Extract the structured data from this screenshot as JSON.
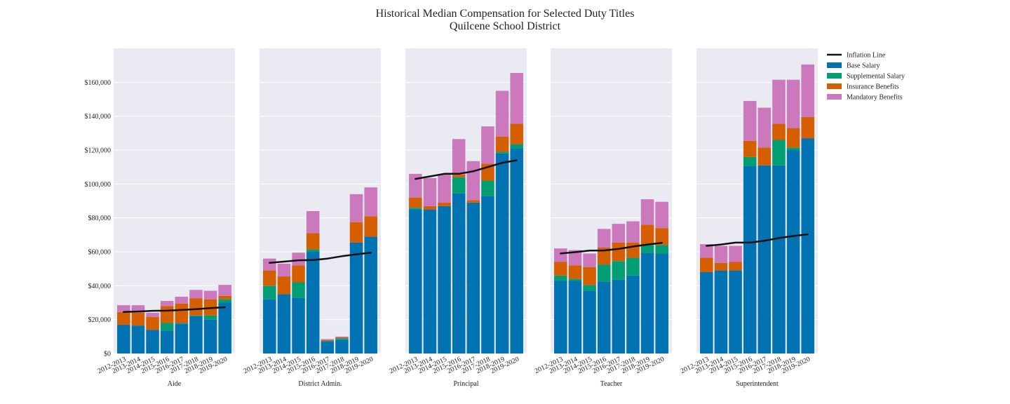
{
  "chart_data": {
    "type": "bar",
    "stacked": true,
    "title": "Historical Median Compensation for Selected Duty Titles",
    "subtitle": "Quilcene School District",
    "ylim": [
      0,
      180000
    ],
    "yticks": [
      0,
      20000,
      40000,
      60000,
      80000,
      100000,
      120000,
      140000,
      160000
    ],
    "ytick_labels": [
      "$0",
      "$20,000",
      "$40,000",
      "$60,000",
      "$80,000",
      "$100,000",
      "$120,000",
      "$140,000",
      "$160,000"
    ],
    "grid": true,
    "legend_position": "top-right, outside plot",
    "categories": [
      "2012-2013",
      "2013-2014",
      "2014-2015",
      "2015-2016",
      "2016-2017",
      "2017-2018",
      "2018-2019",
      "2019-2020"
    ],
    "legend": [
      {
        "name": "Inflation Line",
        "color": "#111111",
        "kind": "line"
      },
      {
        "name": "Base Salary",
        "color": "#0173b2",
        "kind": "bar"
      },
      {
        "name": "Supplemental Salary",
        "color": "#029e73",
        "kind": "bar"
      },
      {
        "name": "Insurance Benefits",
        "color": "#d55e00",
        "kind": "bar"
      },
      {
        "name": "Mandatory Benefits",
        "color": "#cc78bc",
        "kind": "bar"
      }
    ],
    "panels": [
      {
        "label": "Aide",
        "series": [
          {
            "name": "Base Salary",
            "values": [
              17000,
              16500,
              14000,
              13500,
              17500,
              22000,
              20000,
              30000
            ]
          },
          {
            "name": "Supplemental Salary",
            "values": [
              0,
              0,
              0,
              4500,
              500,
              500,
              2500,
              2000
            ]
          },
          {
            "name": "Insurance Benefits",
            "values": [
              7500,
              7500,
              7500,
              10000,
              11500,
              10000,
              9500,
              2000
            ]
          },
          {
            "name": "Mandatory Benefits",
            "values": [
              4000,
              4500,
              2500,
              3000,
              4000,
              5000,
              5000,
              6500
            ]
          }
        ],
        "inflation": [
          24500,
          24800,
          25200,
          25300,
          25700,
          26200,
          26800,
          27300
        ]
      },
      {
        "label": "District Admin.",
        "series": [
          {
            "name": "Base Salary",
            "values": [
              32000,
              35000,
              33000,
              60000,
              7000,
              8000,
              65500,
              69000
            ]
          },
          {
            "name": "Supplemental Salary",
            "values": [
              8000,
              0,
              9000,
              1500,
              500,
              1000,
              0,
              0
            ]
          },
          {
            "name": "Insurance Benefits",
            "values": [
              9000,
              10500,
              10000,
              9500,
              500,
              500,
              12000,
              12000
            ]
          },
          {
            "name": "Mandatory Benefits",
            "values": [
              7000,
              7500,
              7500,
              13000,
              500,
              500,
              16500,
              17000
            ]
          }
        ],
        "inflation": [
          53500,
          54200,
          55000,
          55100,
          56000,
          57400,
          58500,
          59500
        ]
      },
      {
        "label": "Principal",
        "series": [
          {
            "name": "Base Salary",
            "values": [
              85000,
              85000,
              87000,
              94500,
              89000,
              93000,
              118000,
              121000
            ]
          },
          {
            "name": "Supplemental Salary",
            "values": [
              1000,
              0,
              0,
              9500,
              0,
              9000,
              1000,
              2500
            ]
          },
          {
            "name": "Insurance Benefits",
            "values": [
              6000,
              2000,
              2000,
              1500,
              1500,
              10000,
              9000,
              12000
            ]
          },
          {
            "name": "Mandatory Benefits",
            "values": [
              14000,
              16500,
              16500,
              21000,
              23000,
              22000,
              27000,
              30000
            ]
          }
        ],
        "inflation": [
          103000,
          104500,
          106000,
          106000,
          107500,
          110000,
          112500,
          114000
        ]
      },
      {
        "label": "Teacher",
        "series": [
          {
            "name": "Base Salary",
            "values": [
              43000,
              43000,
              37000,
              42500,
              43500,
              46000,
              59500,
              59000
            ]
          },
          {
            "name": "Supplemental Salary",
            "values": [
              3000,
              1000,
              3500,
              10000,
              11000,
              10500,
              4500,
              5000
            ]
          },
          {
            "name": "Insurance Benefits",
            "values": [
              8000,
              8000,
              10500,
              10000,
              11000,
              9000,
              12000,
              10000
            ]
          },
          {
            "name": "Mandatory Benefits",
            "values": [
              8000,
              9000,
              8000,
              11000,
              11000,
              12500,
              15000,
              15500
            ]
          }
        ],
        "inflation": [
          59000,
          59800,
          60700,
          60800,
          61700,
          63100,
          64300,
          65300
        ]
      },
      {
        "label": "Superintendent",
        "series": [
          {
            "name": "Base Salary",
            "values": [
              48000,
              49000,
              49000,
              110500,
              111000,
              111000,
              120000,
              127000
            ]
          },
          {
            "name": "Supplemental Salary",
            "values": [
              0,
              0,
              0,
              5500,
              0,
              15000,
              1500,
              0
            ]
          },
          {
            "name": "Insurance Benefits",
            "values": [
              8500,
              4500,
              5000,
              9500,
              10500,
              9500,
              11500,
              12500
            ]
          },
          {
            "name": "Mandatory Benefits",
            "values": [
              8000,
              10000,
              9500,
              23500,
              23500,
              26000,
              28500,
              31000
            ]
          }
        ],
        "inflation": [
          63500,
          64300,
          65400,
          65400,
          66500,
          68100,
          69300,
          70300
        ]
      }
    ]
  }
}
